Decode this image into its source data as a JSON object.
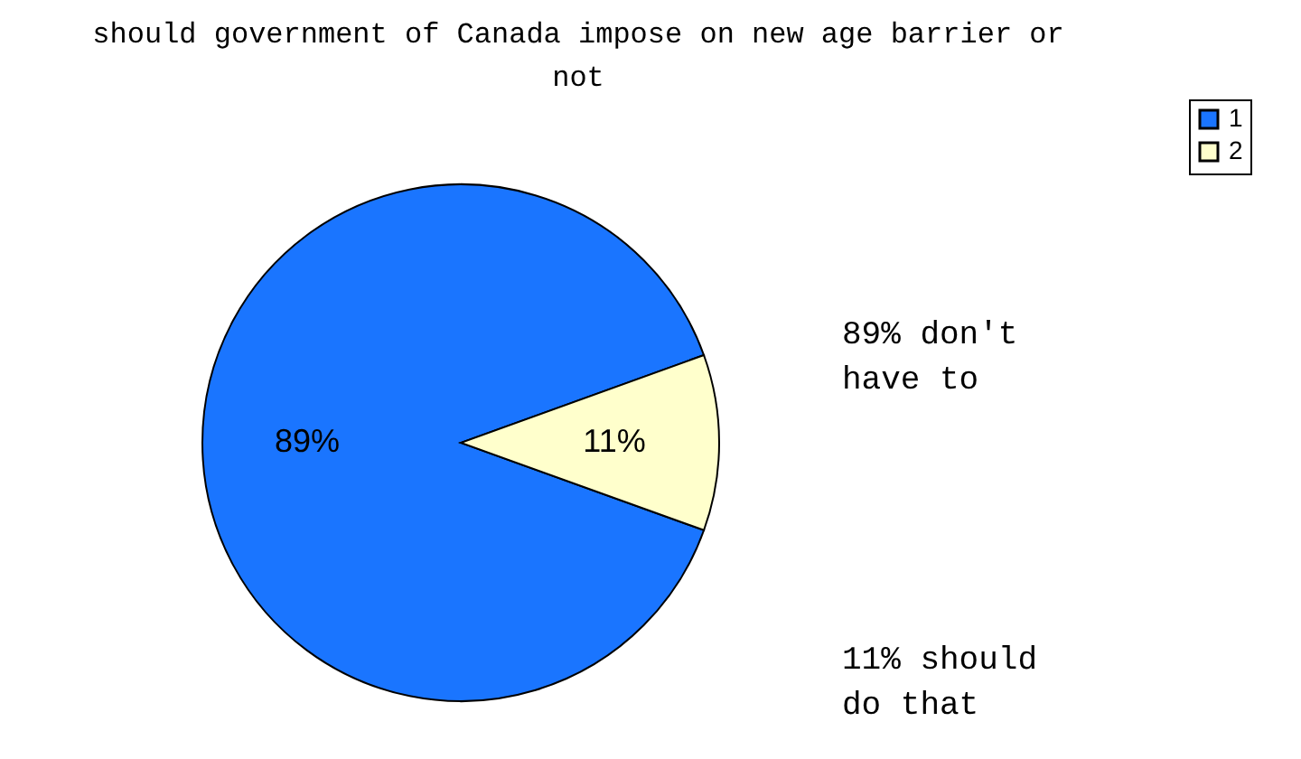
{
  "chart_data": {
    "type": "pie",
    "title": "should government of Canada impose on new age barrier or not",
    "categories": [
      "1",
      "2"
    ],
    "values": [
      89,
      11
    ],
    "colors": [
      "#1a75ff",
      "#ffffcc"
    ],
    "value_labels": [
      "89%",
      "11%"
    ],
    "legend": "right",
    "annotations": [
      "89% don't have to",
      "11% should do that"
    ]
  }
}
